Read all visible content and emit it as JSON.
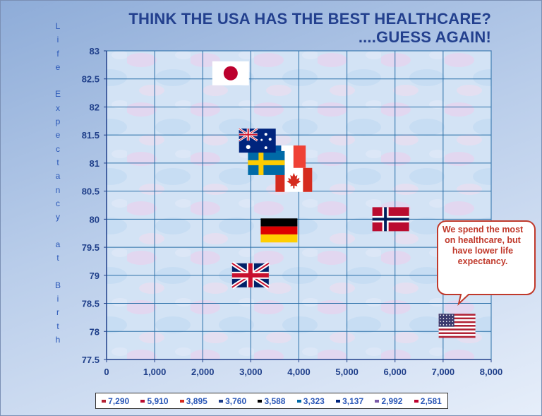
{
  "title_line1": "THINK THE USA HAS THE BEST HEALTHCARE?",
  "title_line2": "....GUESS AGAIN!",
  "callout": "We spend the most on healthcare, but have lower life expectancy.",
  "chart_data": {
    "type": "scatter",
    "title": "THINK THE USA HAS THE BEST HEALTHCARE? ....GUESS AGAIN!",
    "xlabel": "",
    "ylabel": "Life Expectancy at Birth",
    "xlim": [
      0,
      8000
    ],
    "ylim": [
      77.5,
      83
    ],
    "xticks": [
      "0",
      "1,000",
      "2,000",
      "3,000",
      "4,000",
      "5,000",
      "6,000",
      "7,000",
      "8,000"
    ],
    "yticks": [
      "77.5",
      "78",
      "78.5",
      "79",
      "79.5",
      "80",
      "80.5",
      "81",
      "81.5",
      "82",
      "82.5",
      "83"
    ],
    "grid": true,
    "legend_position": "bottom",
    "points": [
      {
        "flag": "usa-flag",
        "x": 7290,
        "y": 78.1,
        "label": "7,290",
        "color": "#b22234"
      },
      {
        "flag": "norway-flag",
        "x": 5910,
        "y": 80.0,
        "label": "5,910",
        "color": "#ba0c2f"
      },
      {
        "flag": "canada-flag",
        "x": 3895,
        "y": 80.7,
        "label": "3,895",
        "color": "#d52b1e"
      },
      {
        "flag": "france-flag",
        "x": 3760,
        "y": 81.1,
        "label": "3,760",
        "color": "#1f3f8a"
      },
      {
        "flag": "germany-flag",
        "x": 3588,
        "y": 79.8,
        "label": "3,588",
        "color": "#000000"
      },
      {
        "flag": "sweden-flag",
        "x": 3323,
        "y": 81.0,
        "label": "3,323",
        "color": "#006aa7"
      },
      {
        "flag": "australia-flag",
        "x": 3137,
        "y": 81.4,
        "label": "3,137",
        "color": "#00247d"
      },
      {
        "flag": "uk-flag",
        "x": 2992,
        "y": 79.0,
        "label": "2,992",
        "color": "#7a5ba8"
      },
      {
        "flag": "japan-flag",
        "x": 2581,
        "y": 82.6,
        "label": "2,581",
        "color": "#bc002d"
      }
    ]
  }
}
